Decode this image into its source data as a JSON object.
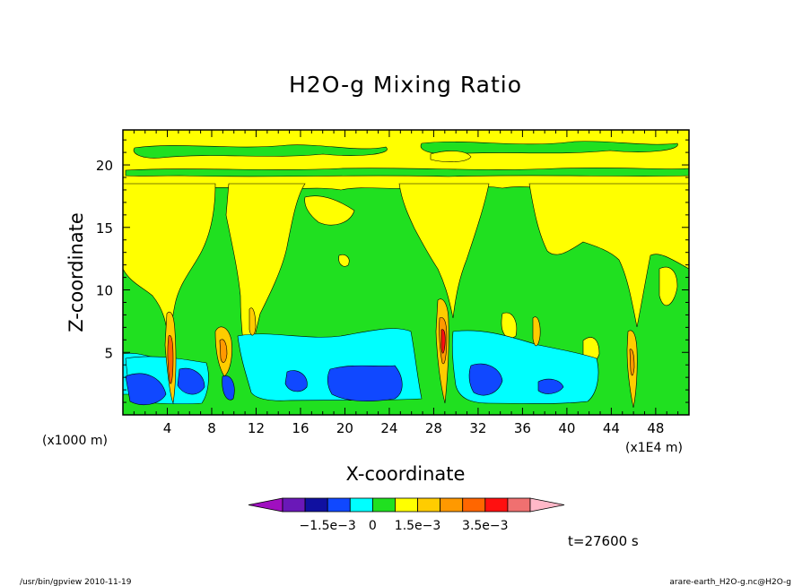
{
  "chart_data": {
    "type": "heatmap",
    "title": "H2O-g Mixing Ratio",
    "xlabel": "X-coordinate",
    "ylabel": "Z-coordinate",
    "x_unit_left": "(x1000 m)",
    "x_unit_right": "(x1E4 m)",
    "xlim": [
      0,
      51
    ],
    "ylim": [
      0,
      22.8
    ],
    "x_ticks": [
      "4",
      "8",
      "12",
      "16",
      "20",
      "24",
      "28",
      "32",
      "36",
      "40",
      "44",
      "48"
    ],
    "y_ticks": [
      "5",
      "10",
      "15",
      "20"
    ],
    "colorbar": {
      "colors": [
        "#a010c0",
        "#6a18b8",
        "#1010a0",
        "#1048ff",
        "#00ffff",
        "#20e020",
        "#ffff00",
        "#ffcc00",
        "#ff9900",
        "#ff6600",
        "#ff1010",
        "#f07070",
        "#ffb8c8"
      ],
      "tick_labels": [
        "−1.5e−3",
        "0",
        "1.5e−3",
        "3.5e−3"
      ]
    },
    "time_label": "t=27600 s",
    "footer_left": "/usr/bin/gpview   2010-11-19",
    "footer_right": "arare-earth_H2O-g.nc@H2O-g",
    "features": [
      {
        "level": "yellow",
        "kind": "band",
        "z": [
          17.5,
          22.5
        ]
      },
      {
        "level": "cyan",
        "kind": "band",
        "z": [
          2.2,
          5.3
        ]
      },
      {
        "level": "blue",
        "kind": "patches",
        "z": [
          0.8,
          3.5
        ]
      },
      {
        "level": "orange-red",
        "kind": "plumes",
        "x": [
          4.6,
          9.5,
          29.3,
          45.8
        ]
      }
    ]
  }
}
